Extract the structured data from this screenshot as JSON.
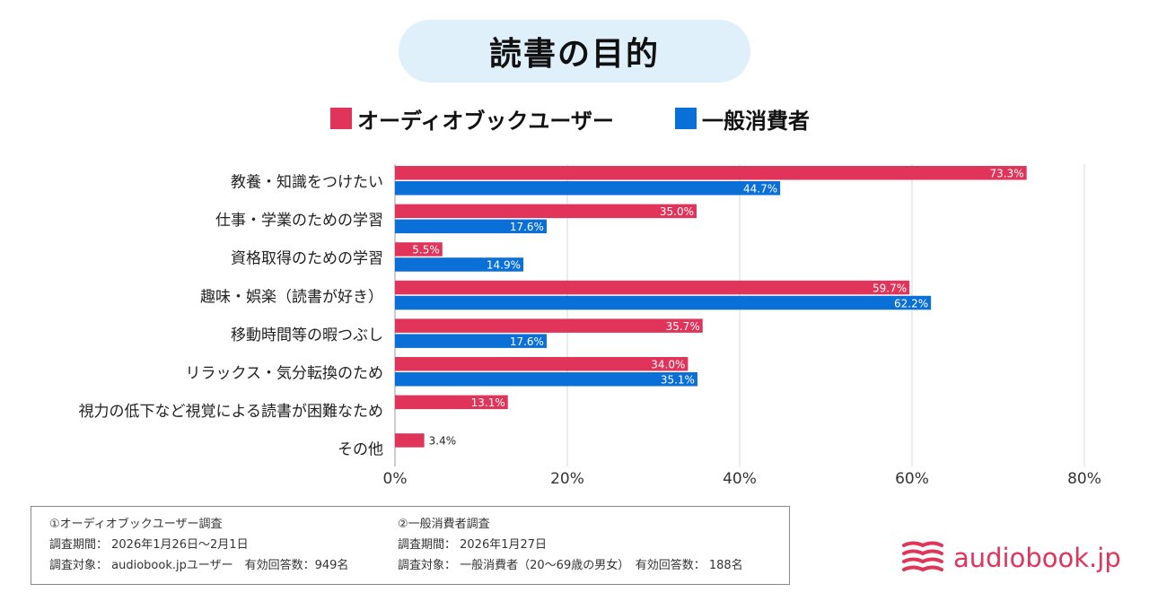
{
  "colors": {
    "users": "#e0345a",
    "general": "#0a6fd6",
    "title_bg": "#e0f0fb",
    "grid": "#d9d9d9",
    "logo": "#e0345a"
  },
  "header": {
    "title": "読書の目的"
  },
  "legend": [
    {
      "label": "オーディオブックユーザー",
      "color": "#e0345a"
    },
    {
      "label": "一般消費者",
      "color": "#0a6fd6"
    }
  ],
  "chart_data": {
    "type": "bar",
    "orientation": "horizontal",
    "title": "読書の目的",
    "categories": [
      "教養・知識をつけたい",
      "仕事・学業のための学習",
      "資格取得のための学習",
      "趣味・娯楽（読書が好き）",
      "移動時間等の暇つぶし",
      "リラックス・気分転換のため",
      "視力の低下など視覚による読書が困難なため",
      "その他"
    ],
    "series": [
      {
        "name": "オーディオブックユーザー",
        "color": "#e0345a",
        "values": [
          73.3,
          35.0,
          5.5,
          59.7,
          35.7,
          34.0,
          13.1,
          3.4
        ]
      },
      {
        "name": "一般消費者",
        "color": "#0a6fd6",
        "values": [
          44.7,
          17.6,
          14.9,
          62.2,
          17.6,
          35.1,
          null,
          null
        ]
      }
    ],
    "xlim": [
      0,
      80
    ],
    "xticks": [
      0,
      20,
      40,
      60,
      80
    ],
    "xtick_labels": [
      "0%",
      "20%",
      "40%",
      "60%",
      "80%"
    ],
    "value_suffix": "%",
    "grid": true,
    "xlabel": "",
    "ylabel": ""
  },
  "survey_info": {
    "left": {
      "title": "①オーディオブックユーザー調査",
      "period": "調査期間： 2026年1月26日～2月1日",
      "target": "調査対象： audiobook.jpユーザー　有効回答数：949名"
    },
    "right": {
      "title": "②一般消費者調査",
      "period": "調査期間： 2026年1月27日",
      "target": "調査対象： 一般消費者（20～69歳の男女）　有効回答数： 188名"
    }
  },
  "logo": {
    "text": "audiobook.jp",
    "icon": "book-stack-icon"
  }
}
